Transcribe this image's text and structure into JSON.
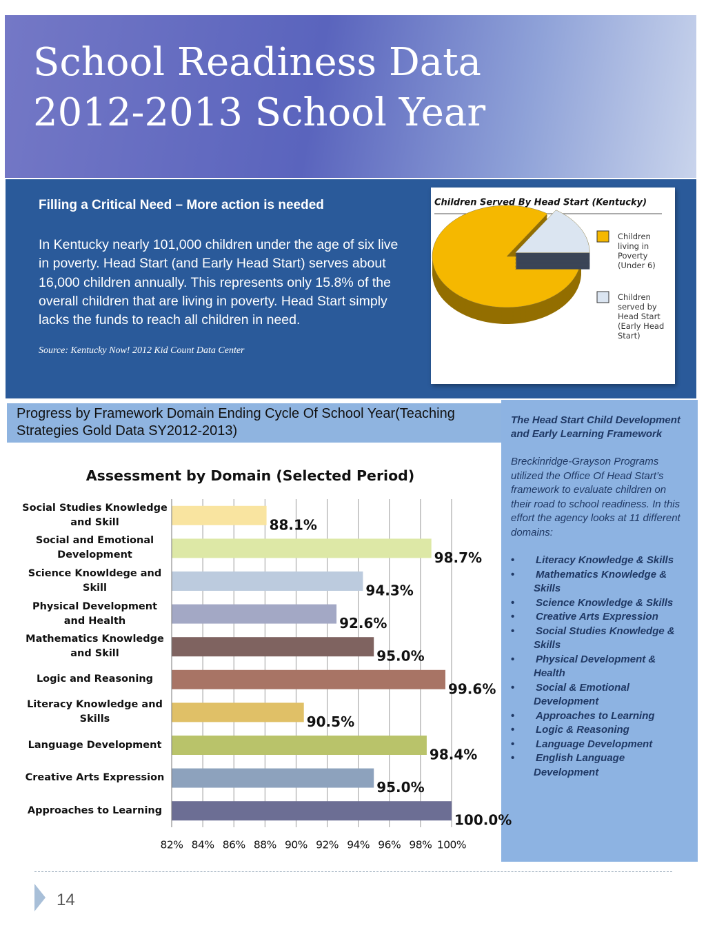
{
  "header": {
    "title_line1": "School Readiness Data",
    "title_line2": "2012-2013 School Year"
  },
  "intro": {
    "heading": "Filling a Critical Need – More action is needed",
    "paragraph": "In Kentucky nearly 101,000 children under the age of six live in poverty.  Head Start (and Early Head Start) serves about 16,000 children annually.  This represents only 15.8% of the overall children that are living in poverty.  Head Start simply lacks the funds to reach all children in need.",
    "source": "Source: Kentucky Now!  2012 Kid Count Data Center"
  },
  "section_heading": "Progress by Framework Domain Ending Cycle Of School Year(Teaching Strategies Gold Data SY2012-2013)",
  "sidebar": {
    "title": "The Head Start Child Development and Early Learning Framework",
    "paragraph": "Breckinridge-Grayson Programs utilized the Office Of Head Start’s framework to evaluate children on their road to school readiness.  In this effort the agency looks at 11 different domains:",
    "items": [
      "Literacy Knowledge & Skills",
      "Mathematics Knowledge & Skills",
      "Science Knowledge & Skills",
      "Creative Arts Expression",
      "Social Studies Knowledge & Skills",
      "Physical Development & Health",
      "Social & Emotional Development",
      "Approaches to Learning",
      "Logic & Reasoning",
      "Language Development",
      "English Language Development"
    ]
  },
  "page_number": "14",
  "chart_data": [
    {
      "type": "pie",
      "title": "Children Served By Head Start (Kentucky)",
      "categories": [
        "Children living in Poverty (Under 6)",
        "Children served by Head Start (Early Head Start)"
      ],
      "values": [
        84.2,
        15.8
      ],
      "colors": [
        "#f5b800",
        "#dbe5f1"
      ]
    },
    {
      "type": "hbar",
      "title": "Assessment by Domain (Selected Period)",
      "categories": [
        "Social Studies Knowledge and Skill",
        "Social and Emotional Development",
        "Science Knowldege and Skill",
        "Physical Development and Health",
        "Mathematics Knowledge and Skill",
        "Logic and Reasoning",
        "Literacy Knowledge and Skills",
        "Language Development",
        "Creative Arts Expression",
        "Approaches to Learning"
      ],
      "values": [
        88.1,
        98.7,
        94.3,
        92.6,
        95.0,
        99.6,
        90.5,
        98.4,
        95.0,
        100.0
      ],
      "value_labels": [
        "88.1%",
        "98.7%",
        "94.3%",
        "92.6%",
        "95.0%",
        "99.6%",
        "90.5%",
        "98.4%",
        "95.0%",
        "100.0%"
      ],
      "colors": [
        "#f9e4a0",
        "#dde8a6",
        "#bccbde",
        "#a3a8c5",
        "#7f6360",
        "#a87465",
        "#e0c067",
        "#b9c36a",
        "#8da2bd",
        "#6c6e94"
      ],
      "xlim": [
        82,
        100
      ],
      "xticks": [
        {
          "value": 82,
          "label": "82%"
        },
        {
          "value": 84,
          "label": "84%"
        },
        {
          "value": 86,
          "label": "86%"
        },
        {
          "value": 88,
          "label": "88%"
        },
        {
          "value": 90,
          "label": "90%"
        },
        {
          "value": 92,
          "label": "92%"
        },
        {
          "value": 94,
          "label": "94%"
        },
        {
          "value": 96,
          "label": "96%"
        },
        {
          "value": 98,
          "label": "98%"
        },
        {
          "value": 100,
          "label": "100%"
        }
      ],
      "grid": true
    }
  ]
}
